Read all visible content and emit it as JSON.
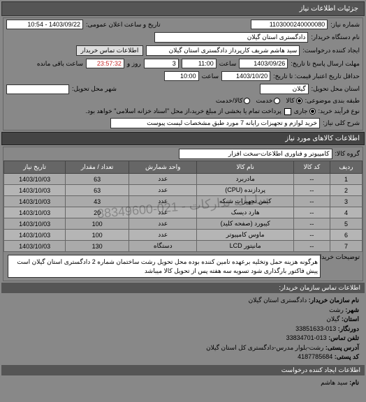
{
  "header": {
    "title": "جزئیات اطلاعات نیاز"
  },
  "top": {
    "niaz_no_label": "شماره نیاز:",
    "niaz_no": "1103000240000080",
    "announce_label": "تاریخ و ساعت اعلان عمومی:",
    "announce_date": "1403/09/22 - 10:54",
    "buyer_org_label": "نام دستگاه خریدار:",
    "buyer_org": "دادگستری استان گیلان",
    "creator_label": "ایجاد کننده درخواست:",
    "creator": "سید هاشم شریف کارپرداز دادگستری استان گیلان",
    "contact_btn": "اطلاعات تماس خریدار",
    "deadline_label": "مهلت ارسال پاسخ تا تاریخ:",
    "deadline_date": "1403/09/26",
    "saat_label": "ساعت",
    "deadline_time": "11:00",
    "remain_days": "3",
    "va_label": "روز و",
    "remain_time": "23:57:32",
    "remain_label": "ساعت باقی مانده",
    "price_valid_label": "حداقل تاریخ اعتبار قیمت: تا تاریخ:",
    "price_valid_date": "1403/10/20",
    "price_valid_time": "10:00",
    "province_label": "استان محل تحویل:",
    "province": "گیلان",
    "city_label": "شهر محل تحویل:",
    "cat_label": "طبقه بندی موضوعی:",
    "radio_kala": "کالا",
    "radio_khadamat": "خدمت",
    "radio_both": "کالا/خدمت",
    "process_label": "نوع فرآیند خرید:",
    "radio_jari": "جاری",
    "process_note": "پرداخت تمام یا بخشی از مبلغ خرید،از محل \"اسناد خزانه اسلامی\" خواهد بود.",
    "title_label": "شرح کلی نیاز:",
    "title_value": "خرید لوازم و تجهیزات رایانه 7 مورد طبق مشخصات لیست پیوست"
  },
  "items_header": "اطلاعات کالاهای مورد نیاز",
  "group_label": "گروه کالا:",
  "group_value": "کامپیوتر و فناوری اطلاعات-سخت افزار",
  "table": {
    "cols": {
      "row": "ردیف",
      "code": "کد کالا",
      "name": "نام کالا",
      "unit": "واحد شمارش",
      "qty": "تعداد / مقدار",
      "date": "تاریخ نیاز"
    },
    "rows": [
      {
        "n": "1",
        "code": "--",
        "name": "مادربرد",
        "unit": "عدد",
        "qty": "63",
        "date": "1403/10/03"
      },
      {
        "n": "2",
        "code": "--",
        "name": "پردازنده (CPU)",
        "unit": "عدد",
        "qty": "63",
        "date": "1403/10/03"
      },
      {
        "n": "3",
        "code": "--",
        "name": "کیس تجهیزات شبکه",
        "unit": "عدد",
        "qty": "43",
        "date": "1403/10/03"
      },
      {
        "n": "4",
        "code": "--",
        "name": "هارد دیسک",
        "unit": "عدد",
        "qty": "20",
        "date": "1403/10/03"
      },
      {
        "n": "5",
        "code": "--",
        "name": "کیبورد (صفحه کلید)",
        "unit": "عدد",
        "qty": "100",
        "date": "1403/10/03"
      },
      {
        "n": "6",
        "code": "--",
        "name": "ماوس کامپیوتر",
        "unit": "عدد",
        "qty": "100",
        "date": "1403/10/03"
      },
      {
        "n": "7",
        "code": "--",
        "name": "مانیتور LCD",
        "unit": "دستگاه",
        "qty": "130",
        "date": "1403/10/03"
      }
    ]
  },
  "watermark": "سامانه تدارکات - 021-88349600",
  "desc": {
    "label": "توضیحات خریدار:",
    "text": "هرگونه هزینه حمل وتخلیه برعهده تامین کننده بوده محل تحویل رشت ساختمان شماره 2 دادگستری استان گیلان است پیش فاکتور بارگذاری شود تسویه سه هفته پس از تحویل کالا میباشد"
  },
  "footer": {
    "head": "اطلاعات تماس سازمان خریدار:",
    "org_l": "نام سازمان خریدار:",
    "org_v": "دادگستری استان گیلان",
    "city_l": "شهر:",
    "city_v": "رشت",
    "prov_l": "استان:",
    "prov_v": "گیلان",
    "tel_l": "دورنگار:",
    "tel_v": "013-33851633",
    "phone_l": "تلفن تماس:",
    "phone_v": "013-33834701",
    "addr_l": "آدرس پستی:",
    "addr_v": "رشت-بلوار مدرس-دادگستری کل استان گیلان",
    "post_l": "کد پستی:",
    "post_v": "4187785684",
    "creator_head": "اطلاعات ایجاد کننده درخواست",
    "name_l": "نام:",
    "name_v": "سید هاشم"
  }
}
